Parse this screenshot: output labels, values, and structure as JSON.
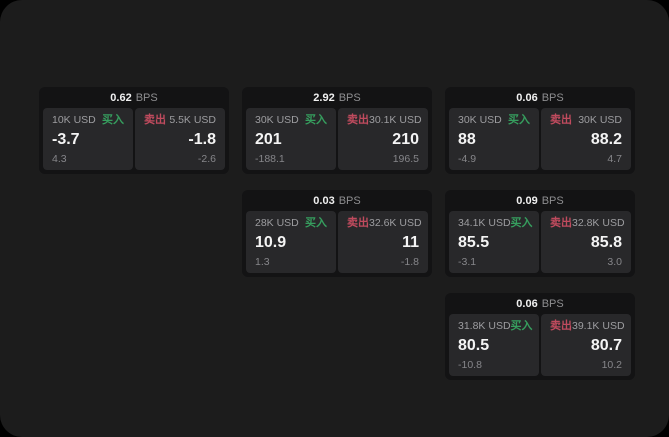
{
  "labels": {
    "buy": "买入",
    "sell": "卖出",
    "bps": "BPS"
  },
  "colors": {
    "page_bg": "#1c1c1c",
    "card_bg": "#131314",
    "panel_bg": "#28282a",
    "buy": "#369e5e",
    "sell": "#c04b5e"
  },
  "cards": [
    {
      "col": 1,
      "row": 1,
      "bps": "0.62",
      "buy": {
        "amount": "10K USD",
        "price": "-3.7",
        "delta": "4.3"
      },
      "sell": {
        "amount": "5.5K USD",
        "price": "-1.8",
        "delta": "-2.6"
      }
    },
    {
      "col": 2,
      "row": 1,
      "bps": "2.92",
      "buy": {
        "amount": "30K USD",
        "price": "201",
        "delta": "-188.1"
      },
      "sell": {
        "amount": "30.1K USD",
        "price": "210",
        "delta": "196.5"
      }
    },
    {
      "col": 3,
      "row": 1,
      "bps": "0.06",
      "buy": {
        "amount": "30K USD",
        "price": "88",
        "delta": "-4.9"
      },
      "sell": {
        "amount": "30K USD",
        "price": "88.2",
        "delta": "4.7"
      }
    },
    {
      "col": 2,
      "row": 2,
      "bps": "0.03",
      "buy": {
        "amount": "28K USD",
        "price": "10.9",
        "delta": "1.3"
      },
      "sell": {
        "amount": "32.6K USD",
        "price": "11",
        "delta": "-1.8"
      }
    },
    {
      "col": 3,
      "row": 2,
      "bps": "0.09",
      "buy": {
        "amount": "34.1K USD",
        "price": "85.5",
        "delta": "-3.1"
      },
      "sell": {
        "amount": "32.8K USD",
        "price": "85.8",
        "delta": "3.0"
      }
    },
    {
      "col": 3,
      "row": 3,
      "bps": "0.06",
      "buy": {
        "amount": "31.8K USD",
        "price": "80.5",
        "delta": "-10.8"
      },
      "sell": {
        "amount": "39.1K USD",
        "price": "80.7",
        "delta": "10.2"
      }
    }
  ]
}
